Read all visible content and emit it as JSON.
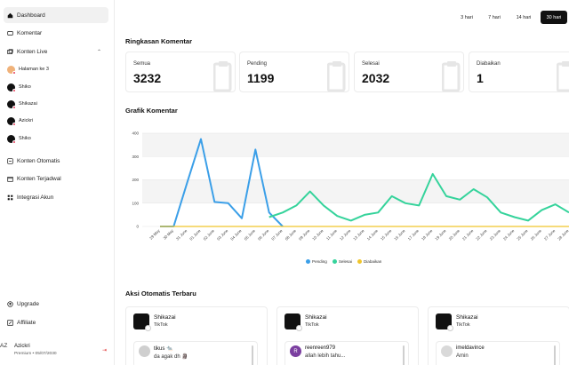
{
  "sidebar": {
    "nav": [
      {
        "label": "Dashboard",
        "icon": "home-icon",
        "active": true
      },
      {
        "label": "Komentar",
        "icon": "comment-icon"
      },
      {
        "label": "Konten Live",
        "icon": "live-icon",
        "expanded": true
      }
    ],
    "live_items": [
      "Halaman ke 3",
      "Shiko",
      "Shikazai",
      "Azickri",
      "Shiko"
    ],
    "nav2": [
      {
        "label": "Konten Otomatis",
        "icon": "auto-icon"
      },
      {
        "label": "Konten Terjadwal",
        "icon": "schedule-icon"
      },
      {
        "label": "Integrasi Akun",
        "icon": "grid-icon"
      }
    ],
    "bottom": [
      {
        "label": "Upgrade",
        "icon": "upgrade-icon"
      },
      {
        "label": "Affiliate",
        "icon": "affiliate-icon"
      }
    ],
    "user": {
      "initials": "AZ",
      "name": "Azickri",
      "plan": "Premium • 05/07/2030"
    }
  },
  "range": {
    "options": [
      "3 hari",
      "7 hari",
      "14 hari",
      "30 hari"
    ],
    "selected": "30 hari"
  },
  "summary": {
    "title": "Ringkasan Komentar",
    "cards": [
      {
        "label": "Semua",
        "value": "3232"
      },
      {
        "label": "Pending",
        "value": "1199"
      },
      {
        "label": "Selesai",
        "value": "2032"
      },
      {
        "label": "Diabaikan",
        "value": "1"
      }
    ]
  },
  "chart_title": "Grafik Komentar",
  "chart_data": {
    "type": "line",
    "x": [
      "29 May",
      "30 May",
      "31 June",
      "01 June",
      "02 June",
      "03 June",
      "04 June",
      "05 June",
      "06 June",
      "07 June",
      "08 June",
      "09 June",
      "10 June",
      "11 June",
      "12 June",
      "13 June",
      "14 June",
      "15 June",
      "16 June",
      "17 June",
      "18 June",
      "19 June",
      "20 June",
      "21 June",
      "22 June",
      "23 June",
      "24 June",
      "25 June",
      "26 June",
      "27 June",
      "28 June"
    ],
    "ylim": [
      0,
      400
    ],
    "yticks": [
      0,
      100,
      200,
      300,
      400
    ],
    "grid": true,
    "legend": "bottom",
    "series": [
      {
        "name": "Pending",
        "color": "#3b9fe8",
        "values": [
          0,
          0,
          190,
          375,
          105,
          100,
          35,
          330,
          60,
          0,
          null,
          null,
          null,
          null,
          null,
          null,
          null,
          null,
          null,
          null,
          null,
          null,
          null,
          null,
          null,
          null,
          null,
          null,
          null,
          null,
          null
        ]
      },
      {
        "name": "Selesai",
        "color": "#35d39b",
        "values": [
          null,
          null,
          null,
          null,
          null,
          null,
          null,
          null,
          40,
          60,
          90,
          150,
          90,
          45,
          25,
          50,
          60,
          130,
          100,
          90,
          225,
          130,
          115,
          160,
          125,
          60,
          40,
          25,
          70,
          95,
          60
        ]
      },
      {
        "name": "Diabaikan",
        "color": "#f0c52b",
        "values": [
          0,
          0,
          0,
          0,
          0,
          0,
          0,
          0,
          0,
          0,
          0,
          0,
          0,
          0,
          0,
          0,
          0,
          0,
          0,
          0,
          0,
          0,
          0,
          0,
          0,
          0,
          0,
          0,
          0,
          0,
          0
        ]
      }
    ]
  },
  "auto": {
    "title": "Aksi Otomatis Terbaru",
    "cards": [
      {
        "name": "Shikazai",
        "platform": "TikTok",
        "comment_user": "tikus 🐀",
        "comment_text": "da agak dh 🗿",
        "avatar_letter": "",
        "avatar_color": "#cfcfcf"
      },
      {
        "name": "Shikazai",
        "platform": "TikTok",
        "comment_user": "reenreen979",
        "comment_text": "allah lebih tahu...",
        "avatar_letter": "R",
        "avatar_color": "#7b3fa0"
      },
      {
        "name": "Shikazai",
        "platform": "TikTok",
        "comment_user": "imeldavince",
        "comment_text": "Amin",
        "avatar_letter": "",
        "avatar_color": "#d9d9d9"
      }
    ]
  }
}
